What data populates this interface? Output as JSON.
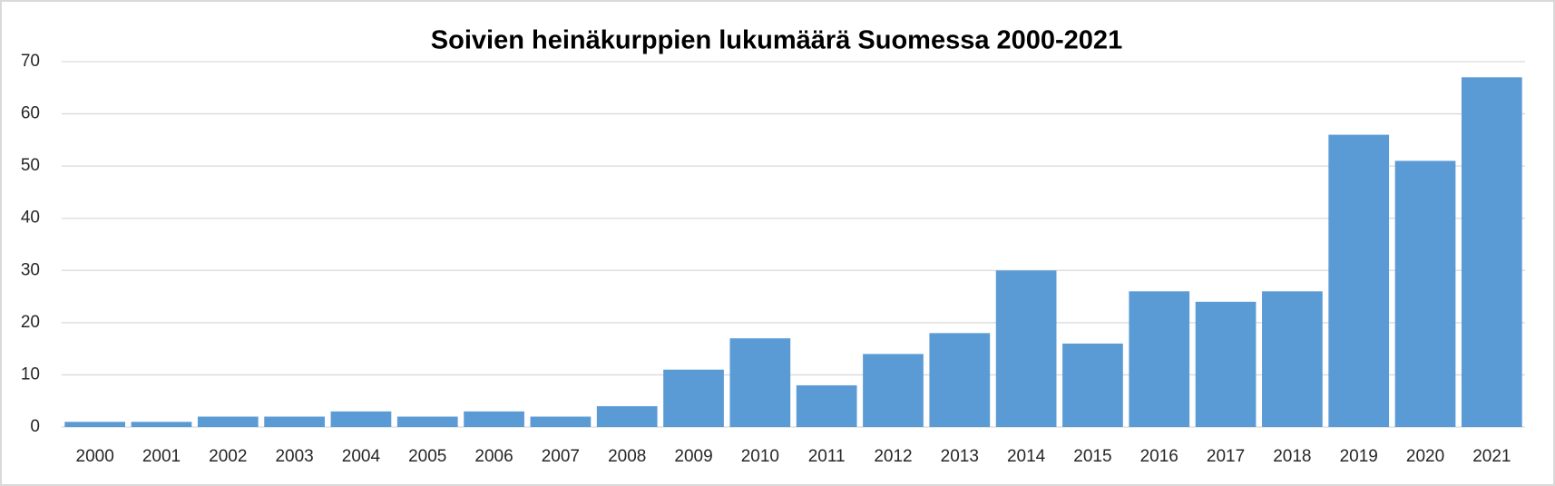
{
  "chart_data": {
    "type": "bar",
    "title": "Soivien heinäkurppien lukumäärä Suomessa 2000-2021",
    "categories": [
      "2000",
      "2001",
      "2002",
      "2003",
      "2004",
      "2005",
      "2006",
      "2007",
      "2008",
      "2009",
      "2010",
      "2011",
      "2012",
      "2013",
      "2014",
      "2015",
      "2016",
      "2017",
      "2018",
      "2019",
      "2020",
      "2021"
    ],
    "values": [
      1,
      1,
      2,
      2,
      3,
      2,
      3,
      2,
      4,
      11,
      17,
      8,
      14,
      18,
      30,
      16,
      26,
      24,
      26,
      56,
      51,
      67
    ],
    "color": "#5b9bd5",
    "ylim": [
      0,
      70
    ],
    "yticks": [
      0,
      10,
      20,
      30,
      40,
      50,
      60,
      70
    ],
    "grid": true
  }
}
